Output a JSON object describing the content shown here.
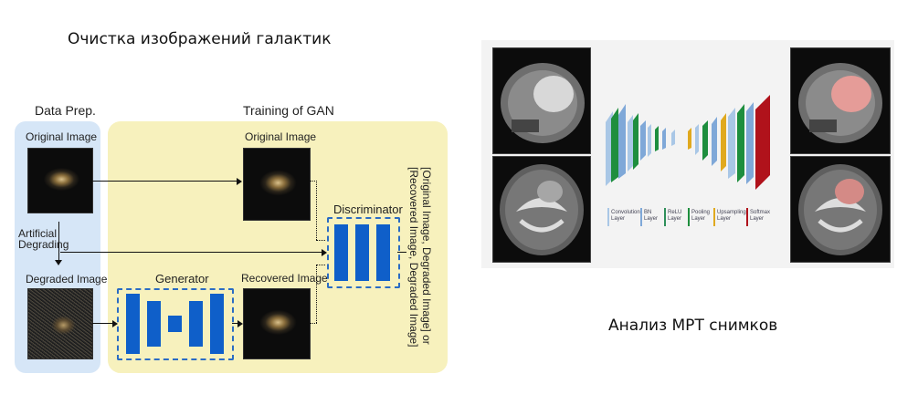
{
  "left_title": "Очистка изображений галактик",
  "right_title": "Анализ МРТ снимков",
  "diagram": {
    "data_prep": "Data Prep.",
    "training": "Training of GAN",
    "original_image": "Original Image",
    "original_image_2": "Original Image",
    "artificial_degrading": "Artificial\nDegrading",
    "degraded_image": "Degraded Image",
    "generator": "Generator",
    "recovered_image": "Recovered Image",
    "discriminator": "Discriminator",
    "output_text_1": "[Original Image, Degraded Image] or",
    "output_text_2": "[Recovered Image, Degraded Image]"
  },
  "unet_legend": [
    {
      "label": "Convolution\nLayer",
      "color": "#a9c7e6"
    },
    {
      "label": "BN\nLayer",
      "color": "#7fa8d8"
    },
    {
      "label": "ReLU\nLayer",
      "color": "#2f8f5a"
    },
    {
      "label": "Pooling\nLayer",
      "color": "#1e8e3e"
    },
    {
      "label": "Upsampling\nLayer",
      "color": "#e0a91e"
    },
    {
      "label": "Softmax\nLayer",
      "color": "#b0121b"
    }
  ]
}
